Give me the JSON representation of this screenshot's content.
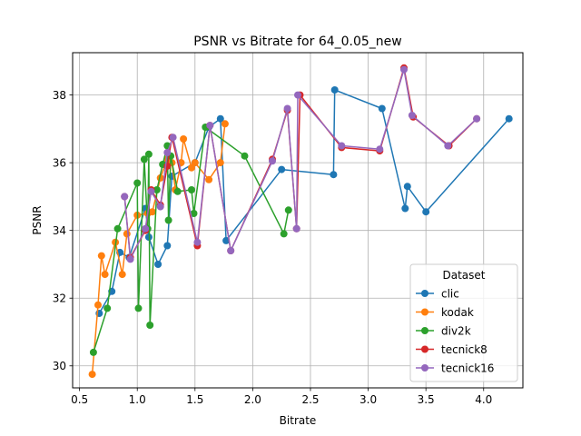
{
  "chart_data": {
    "type": "line",
    "title": "PSNR vs Bitrate for 64_0.05_new",
    "xlabel": "Bitrate",
    "ylabel": "PSNR",
    "xlim": [
      0.44,
      4.34
    ],
    "ylim": [
      29.35,
      39.25
    ],
    "xticks": [
      0.5,
      1.0,
      1.5,
      2.0,
      2.5,
      3.0,
      3.5,
      4.0
    ],
    "xtick_labels": [
      "0.5",
      "1.0",
      "1.5",
      "2.0",
      "2.5",
      "3.0",
      "3.5",
      "4.0"
    ],
    "yticks": [
      30,
      32,
      34,
      36,
      38
    ],
    "ytick_labels": [
      "30",
      "32",
      "34",
      "36",
      "38"
    ],
    "grid": true,
    "legend": {
      "title": "Dataset",
      "placement": "lower-right"
    },
    "series": [
      {
        "name": "clic",
        "color": "#1f77b4",
        "points": [
          [
            0.67,
            31.55
          ],
          [
            0.78,
            32.2
          ],
          [
            0.85,
            33.35
          ],
          [
            0.93,
            33.2
          ],
          [
            1.07,
            34.65
          ],
          [
            1.1,
            33.8
          ],
          [
            1.18,
            33.0
          ],
          [
            1.26,
            33.55
          ],
          [
            1.3,
            35.6
          ],
          [
            1.5,
            36.0
          ],
          [
            1.62,
            37.05
          ],
          [
            1.72,
            37.3
          ],
          [
            1.77,
            33.7
          ],
          [
            2.25,
            35.8
          ],
          [
            2.7,
            35.65
          ],
          [
            2.71,
            38.15
          ],
          [
            3.12,
            37.6
          ],
          [
            3.32,
            34.65
          ],
          [
            3.34,
            35.3
          ],
          [
            3.5,
            34.55
          ],
          [
            4.22,
            37.3
          ]
        ]
      },
      {
        "name": "kodak",
        "color": "#ff7f0e",
        "points": [
          [
            0.61,
            29.75
          ],
          [
            0.66,
            31.8
          ],
          [
            0.69,
            33.25
          ],
          [
            0.72,
            32.7
          ],
          [
            0.81,
            33.65
          ],
          [
            0.87,
            32.7
          ],
          [
            0.91,
            33.9
          ],
          [
            1.0,
            34.45
          ],
          [
            1.09,
            34.5
          ],
          [
            1.13,
            34.55
          ],
          [
            1.2,
            35.55
          ],
          [
            1.26,
            36.1
          ],
          [
            1.3,
            36.0
          ],
          [
            1.33,
            35.2
          ],
          [
            1.38,
            36.0
          ],
          [
            1.4,
            36.7
          ],
          [
            1.47,
            35.85
          ],
          [
            1.5,
            36.0
          ],
          [
            1.62,
            35.5
          ],
          [
            1.72,
            36.0
          ],
          [
            1.76,
            37.15
          ]
        ]
      },
      {
        "name": "div2k",
        "color": "#2ca02c",
        "points": [
          [
            0.62,
            30.4
          ],
          [
            0.74,
            31.7
          ],
          [
            0.83,
            34.05
          ],
          [
            1.0,
            35.4
          ],
          [
            1.01,
            31.7
          ],
          [
            1.06,
            36.1
          ],
          [
            1.09,
            34.05
          ],
          [
            1.1,
            36.25
          ],
          [
            1.11,
            31.2
          ],
          [
            1.17,
            35.2
          ],
          [
            1.22,
            35.95
          ],
          [
            1.26,
            36.5
          ],
          [
            1.27,
            34.3
          ],
          [
            1.29,
            36.2
          ],
          [
            1.35,
            35.15
          ],
          [
            1.47,
            35.2
          ],
          [
            1.49,
            34.5
          ],
          [
            1.59,
            37.05
          ],
          [
            1.93,
            36.2
          ],
          [
            2.27,
            33.9
          ],
          [
            2.31,
            34.6
          ]
        ]
      },
      {
        "name": "tecnick8",
        "color": "#d62728",
        "points": [
          [
            0.89,
            35.0
          ],
          [
            0.94,
            33.2
          ],
          [
            1.07,
            34.0
          ],
          [
            1.12,
            35.2
          ],
          [
            1.2,
            34.75
          ],
          [
            1.26,
            35.9
          ],
          [
            1.3,
            36.75
          ],
          [
            1.52,
            33.55
          ],
          [
            1.63,
            37.1
          ],
          [
            1.81,
            33.4
          ],
          [
            2.17,
            36.1
          ],
          [
            2.3,
            37.55
          ],
          [
            2.38,
            34.05
          ],
          [
            2.41,
            38.0
          ],
          [
            2.77,
            36.45
          ],
          [
            3.1,
            36.35
          ],
          [
            3.31,
            38.8
          ],
          [
            3.39,
            37.35
          ],
          [
            3.7,
            36.5
          ],
          [
            3.94,
            37.3
          ]
        ]
      },
      {
        "name": "tecnick16",
        "color": "#9467bd",
        "points": [
          [
            0.89,
            35.0
          ],
          [
            0.94,
            33.15
          ],
          [
            1.07,
            34.05
          ],
          [
            1.12,
            35.15
          ],
          [
            1.2,
            34.7
          ],
          [
            1.26,
            36.3
          ],
          [
            1.31,
            36.75
          ],
          [
            1.52,
            33.65
          ],
          [
            1.63,
            37.1
          ],
          [
            1.81,
            33.4
          ],
          [
            2.17,
            36.05
          ],
          [
            2.3,
            37.6
          ],
          [
            2.38,
            34.05
          ],
          [
            2.39,
            38.0
          ],
          [
            2.77,
            36.5
          ],
          [
            3.1,
            36.4
          ],
          [
            3.31,
            38.75
          ],
          [
            3.38,
            37.4
          ],
          [
            3.69,
            36.5
          ],
          [
            3.94,
            37.3
          ]
        ]
      }
    ]
  }
}
